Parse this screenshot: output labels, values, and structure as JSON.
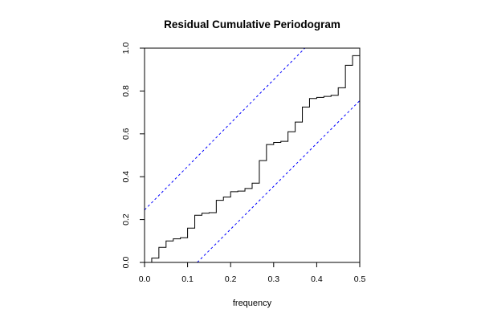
{
  "chart_data": {
    "type": "line",
    "title": "Residual Cumulative Periodogram",
    "xlabel": "frequency",
    "ylabel": "",
    "xlim": [
      0.0,
      0.5
    ],
    "ylim": [
      0.0,
      1.0
    ],
    "x_ticks": [
      "0.0",
      "0.1",
      "0.2",
      "0.3",
      "0.4",
      "0.5"
    ],
    "y_ticks": [
      "0.0",
      "0.2",
      "0.4",
      "0.6",
      "0.8",
      "1.0"
    ],
    "grid": false,
    "legend": "none",
    "series": [
      {
        "style": "step",
        "color": "#000000",
        "x": [
          0.0,
          0.0167,
          0.0333,
          0.05,
          0.0667,
          0.0833,
          0.1,
          0.1167,
          0.1333,
          0.15,
          0.1667,
          0.1833,
          0.2,
          0.2167,
          0.2333,
          0.25,
          0.2667,
          0.2833,
          0.3,
          0.3167,
          0.3333,
          0.35,
          0.3667,
          0.3833,
          0.4,
          0.4167,
          0.4333,
          0.45,
          0.4667,
          0.4833,
          0.5
        ],
        "y": [
          0.0,
          0.02,
          0.07,
          0.1,
          0.11,
          0.115,
          0.16,
          0.22,
          0.23,
          0.232,
          0.29,
          0.305,
          0.33,
          0.333,
          0.345,
          0.37,
          0.475,
          0.55,
          0.56,
          0.565,
          0.61,
          0.655,
          0.725,
          0.765,
          0.77,
          0.775,
          0.78,
          0.815,
          0.92,
          0.965,
          1.0
        ]
      },
      {
        "style": "dashed",
        "color": "#0000ff",
        "x": [
          0.0,
          0.3725
        ],
        "y": [
          0.245,
          1.0
        ]
      },
      {
        "style": "dashed",
        "color": "#0000ff",
        "x": [
          0.1225,
          0.5
        ],
        "y": [
          0.0,
          0.755
        ]
      }
    ]
  }
}
